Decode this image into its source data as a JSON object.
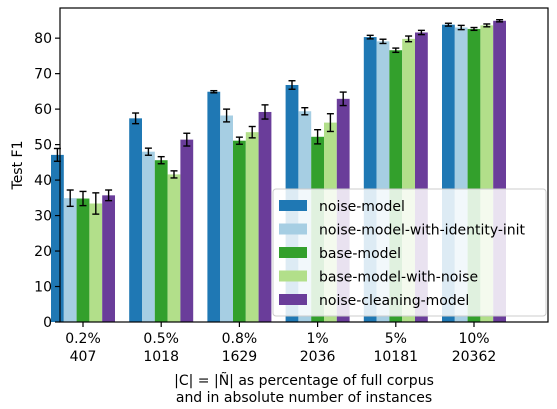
{
  "chart_data": {
    "type": "bar",
    "categories": [
      {
        "line1": "0.2%",
        "line2": "407"
      },
      {
        "line1": "0.5%",
        "line2": "1018"
      },
      {
        "line1": "0.8%",
        "line2": "1629"
      },
      {
        "line1": "1%",
        "line2": "2036"
      },
      {
        "line1": "5%",
        "line2": "10181"
      },
      {
        "line1": "10%",
        "line2": "20362"
      }
    ],
    "series": [
      {
        "name": "noise-model",
        "color": "#1f78b4",
        "values": [
          47.1,
          57.4,
          64.9,
          66.8,
          80.3,
          83.8
        ],
        "errors": [
          1.8,
          1.5,
          0.3,
          1.2,
          0.5,
          0.4
        ]
      },
      {
        "name": "noise-model-with-identity-init",
        "color": "#a6cee3",
        "values": [
          34.9,
          48.0,
          58.2,
          59.4,
          79.1,
          83.0
        ],
        "errors": [
          2.3,
          1.0,
          1.8,
          1.0,
          0.6,
          0.6
        ]
      },
      {
        "name": "base-model",
        "color": "#33a02c",
        "values": [
          34.8,
          45.6,
          51.1,
          52.2,
          76.6,
          82.6
        ],
        "errors": [
          2.0,
          1.0,
          1.0,
          2.0,
          0.6,
          0.4
        ]
      },
      {
        "name": "base-model-with-noise",
        "color": "#b2df8a",
        "values": [
          33.4,
          41.6,
          53.5,
          56.2,
          79.8,
          83.6
        ],
        "errors": [
          3.0,
          1.0,
          1.6,
          2.5,
          0.8,
          0.4
        ]
      },
      {
        "name": "noise-cleaning-model",
        "color": "#6a3d9a",
        "values": [
          35.7,
          51.4,
          59.2,
          62.9,
          81.6,
          84.9
        ],
        "errors": [
          1.5,
          1.8,
          2.0,
          1.9,
          0.6,
          0.3
        ]
      }
    ],
    "ylabel": "Test F1",
    "xlabel_line1": "|C| = |Ñ| as percentage of full corpus",
    "xlabel_line2": "and in absolute number of instances",
    "yticks": [
      0,
      10,
      20,
      30,
      40,
      50,
      60,
      70,
      80
    ],
    "ylim": [
      0,
      88.5
    ],
    "grid": false,
    "legend_position": "lower-right"
  }
}
